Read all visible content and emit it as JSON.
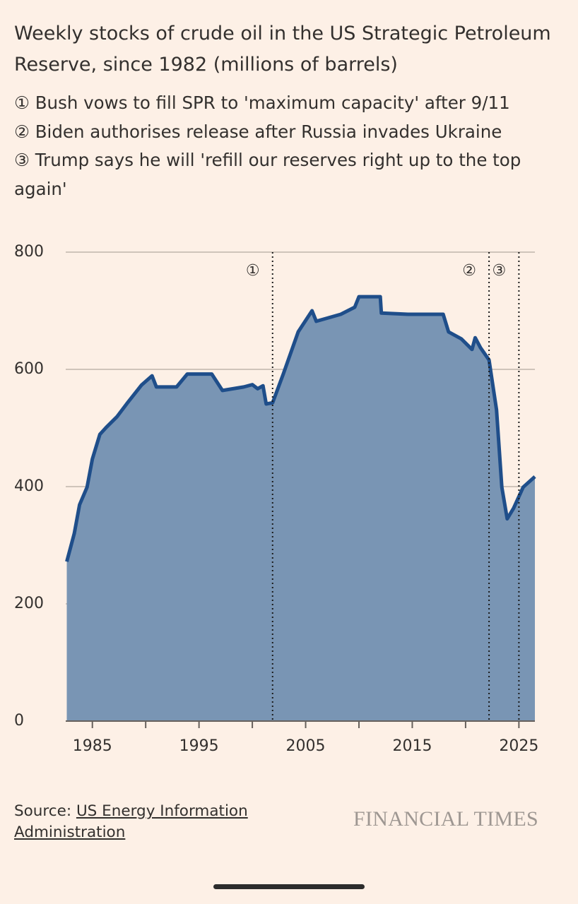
{
  "chart_data": {
    "type": "area",
    "title": "Weekly stocks of crude oil in the US Strategic Petroleum Reserve, since 1982 (millions of barrels)",
    "notes": [
      "① Bush vows to fill SPR to 'maximum capacity' after 9/11",
      "② Biden authorises release after Russia invades Ukraine",
      "③ Trump says he will 'refill our reserves right up to the top again'"
    ],
    "source_label": "Source:",
    "source_link": "US Energy Information Administration",
    "brand": "FINANCIAL TIMES",
    "color": "#1f4e8a",
    "fill_color": "#7995b4",
    "x": [
      1982.6,
      1983.3,
      1983.8,
      1984.5,
      1985.0,
      1985.7,
      1986.3,
      1987.3,
      1988.3,
      1989.6,
      1990.6,
      1991.0,
      1992.9,
      1993.9,
      1996.2,
      1997.2,
      1999.2,
      2000.0,
      2000.5,
      2001.0,
      2001.3,
      2001.9,
      2002.9,
      2004.3,
      2005.6,
      2006.0,
      2008.3,
      2009.6,
      2010.0,
      2012.0,
      2012.1,
      2014.6,
      2017.9,
      2018.4,
      2019.6,
      2020.6,
      2020.9,
      2021.4,
      2022.2,
      2022.9,
      2023.4,
      2023.9,
      2024.5,
      2025.4,
      2026.5
    ],
    "values": [
      272,
      320,
      369,
      399,
      447,
      489,
      501,
      519,
      543,
      573,
      589,
      570,
      570,
      592,
      592,
      564,
      570,
      574,
      567,
      572,
      541,
      543,
      592,
      664,
      700,
      682,
      694,
      706,
      724,
      724,
      696,
      694,
      694,
      664,
      652,
      634,
      654,
      637,
      616,
      531,
      399,
      345,
      363,
      399,
      417
    ],
    "xlim": [
      1982.5,
      2026.5
    ],
    "xticks": [
      1985,
      1995,
      2005,
      2015,
      2025
    ],
    "x_minor_ticks": [
      1990,
      2000,
      2010,
      2020
    ],
    "ylim": [
      0,
      800
    ],
    "yticks": [
      0,
      200,
      400,
      600,
      800
    ],
    "grid": true,
    "annotations": [
      {
        "x": 2001.9,
        "label": "①"
      },
      {
        "x": 2022.2,
        "label": "②"
      },
      {
        "x": 2025.0,
        "label": "③"
      }
    ]
  }
}
